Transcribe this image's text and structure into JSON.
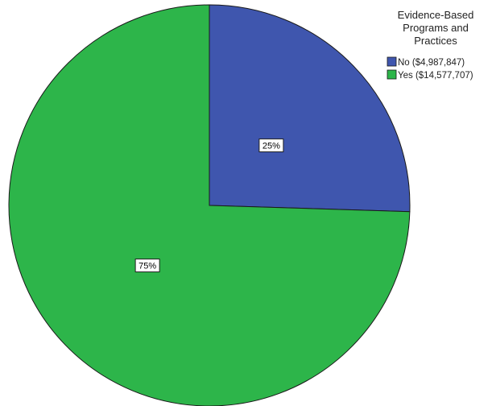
{
  "chart_data": {
    "type": "pie",
    "title": "",
    "legend": {
      "title_lines": [
        "Evidence-Based",
        "Programs and",
        "Practices"
      ],
      "placement": "top-right"
    },
    "slices": [
      {
        "label": "No ($4,987,847)",
        "category": "No",
        "value": 4987847,
        "percent_label": "25%",
        "color": "#3f56ae"
      },
      {
        "label": "Yes ($14,577,707)",
        "category": "Yes",
        "value": 14577707,
        "percent_label": "75%",
        "color": "#2db54a"
      }
    ]
  }
}
